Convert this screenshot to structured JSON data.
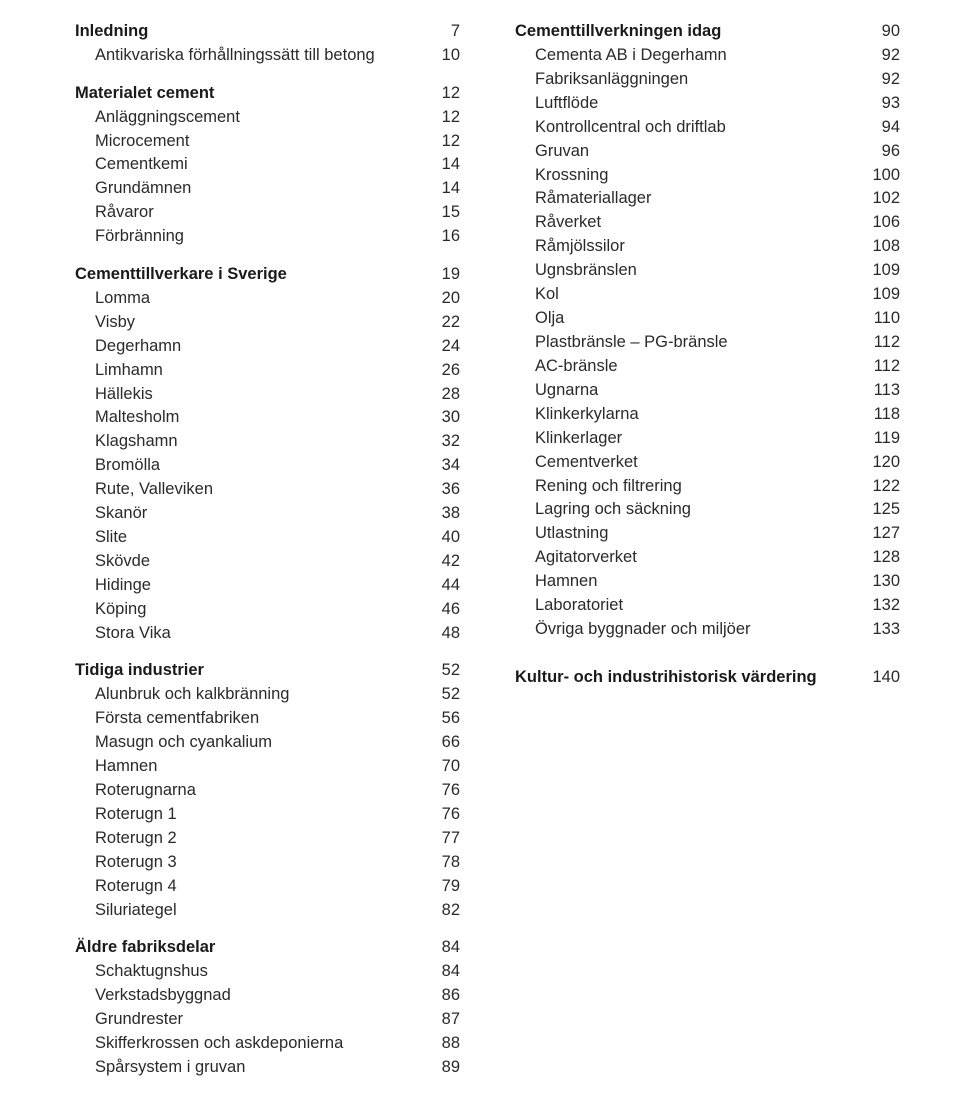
{
  "left": [
    {
      "type": "heading",
      "label": "Inledning",
      "page": "7"
    },
    {
      "type": "sub",
      "label": "Antikvariska förhållningssätt till betong",
      "page": "10"
    },
    {
      "type": "gap"
    },
    {
      "type": "heading",
      "label": "Materialet cement",
      "page": "12"
    },
    {
      "type": "sub",
      "label": "Anläggningscement",
      "page": "12"
    },
    {
      "type": "sub",
      "label": "Microcement",
      "page": "12"
    },
    {
      "type": "sub",
      "label": "Cementkemi",
      "page": "14"
    },
    {
      "type": "sub",
      "label": "Grundämnen",
      "page": "14"
    },
    {
      "type": "sub",
      "label": "Råvaror",
      "page": "15"
    },
    {
      "type": "sub",
      "label": "Förbränning",
      "page": "16"
    },
    {
      "type": "gap"
    },
    {
      "type": "heading",
      "label": "Cementtillverkare i Sverige",
      "page": "19"
    },
    {
      "type": "sub",
      "label": "Lomma",
      "page": "20"
    },
    {
      "type": "sub",
      "label": "Visby",
      "page": "22"
    },
    {
      "type": "sub",
      "label": "Degerhamn",
      "page": "24"
    },
    {
      "type": "sub",
      "label": "Limhamn",
      "page": "26"
    },
    {
      "type": "sub",
      "label": "Hällekis",
      "page": "28"
    },
    {
      "type": "sub",
      "label": "Maltesholm",
      "page": "30"
    },
    {
      "type": "sub",
      "label": "Klagshamn",
      "page": "32"
    },
    {
      "type": "sub",
      "label": "Bromölla",
      "page": "34"
    },
    {
      "type": "sub",
      "label": "Rute, Valleviken",
      "page": "36"
    },
    {
      "type": "sub",
      "label": "Skanör",
      "page": "38"
    },
    {
      "type": "sub",
      "label": "Slite",
      "page": "40"
    },
    {
      "type": "sub",
      "label": "Skövde",
      "page": "42"
    },
    {
      "type": "sub",
      "label": "Hidinge",
      "page": "44"
    },
    {
      "type": "sub",
      "label": "Köping",
      "page": "46"
    },
    {
      "type": "sub",
      "label": "Stora Vika",
      "page": "48"
    },
    {
      "type": "gap"
    },
    {
      "type": "heading",
      "label": "Tidiga industrier",
      "page": "52"
    },
    {
      "type": "sub",
      "label": "Alunbruk och kalkbränning",
      "page": "52"
    },
    {
      "type": "sub",
      "label": "Första cementfabriken",
      "page": "56"
    },
    {
      "type": "sub",
      "label": "Masugn och cyankalium",
      "page": "66"
    },
    {
      "type": "sub",
      "label": "Hamnen",
      "page": "70"
    },
    {
      "type": "sub",
      "label": "Roterugnarna",
      "page": "76"
    },
    {
      "type": "sub",
      "label": "Roterugn 1",
      "page": "76"
    },
    {
      "type": "sub",
      "label": "Roterugn 2",
      "page": "77"
    },
    {
      "type": "sub",
      "label": "Roterugn 3",
      "page": "78"
    },
    {
      "type": "sub",
      "label": "Roterugn 4",
      "page": "79"
    },
    {
      "type": "sub",
      "label": "Siluriategel",
      "page": "82"
    },
    {
      "type": "gap"
    },
    {
      "type": "heading",
      "label": "Äldre fabriksdelar",
      "page": "84"
    },
    {
      "type": "sub",
      "label": "Schaktugnshus",
      "page": "84"
    },
    {
      "type": "sub",
      "label": "Verkstadsbyggnad",
      "page": "86"
    },
    {
      "type": "sub",
      "label": "Grundrester",
      "page": "87"
    },
    {
      "type": "sub",
      "label": "Skifferkrossen och askdeponierna",
      "page": "88"
    },
    {
      "type": "sub",
      "label": "Spårsystem i gruvan",
      "page": "89"
    }
  ],
  "right": [
    {
      "type": "heading",
      "label": "Cementtillverkningen idag",
      "page": "90"
    },
    {
      "type": "sub",
      "label": "Cementa AB i Degerhamn",
      "page": "92"
    },
    {
      "type": "sub",
      "label": "Fabriksanläggningen",
      "page": "92"
    },
    {
      "type": "sub",
      "label": "Luftflöde",
      "page": "93"
    },
    {
      "type": "sub",
      "label": "Kontrollcentral och driftlab",
      "page": "94"
    },
    {
      "type": "sub",
      "label": "Gruvan",
      "page": "96"
    },
    {
      "type": "sub",
      "label": "Krossning",
      "page": "100"
    },
    {
      "type": "sub",
      "label": "Råmateriallager",
      "page": "102"
    },
    {
      "type": "sub",
      "label": "Råverket",
      "page": "106"
    },
    {
      "type": "sub",
      "label": "Råmjölssilor",
      "page": "108"
    },
    {
      "type": "sub",
      "label": "Ugnsbränslen",
      "page": "109"
    },
    {
      "type": "sub",
      "label": "Kol",
      "page": "109"
    },
    {
      "type": "sub",
      "label": "Olja",
      "page": "110"
    },
    {
      "type": "sub",
      "label": "Plastbränsle – PG-bränsle",
      "page": "112"
    },
    {
      "type": "sub",
      "label": "AC-bränsle",
      "page": "112"
    },
    {
      "type": "sub",
      "label": "Ugnarna",
      "page": "113"
    },
    {
      "type": "sub",
      "label": "Klinkerkylarna",
      "page": "118"
    },
    {
      "type": "sub",
      "label": "Klinkerlager",
      "page": "119"
    },
    {
      "type": "sub",
      "label": "Cementverket",
      "page": "120"
    },
    {
      "type": "sub",
      "label": "Rening och filtrering",
      "page": "122"
    },
    {
      "type": "sub",
      "label": "Lagring och säckning",
      "page": "125"
    },
    {
      "type": "sub",
      "label": "Utlastning",
      "page": "127"
    },
    {
      "type": "sub",
      "label": "Agitatorverket",
      "page": "128"
    },
    {
      "type": "sub",
      "label": "Hamnen",
      "page": "130"
    },
    {
      "type": "sub",
      "label": "Laboratoriet",
      "page": "132"
    },
    {
      "type": "sub",
      "label": "Övriga byggnader och miljöer",
      "page": "133"
    },
    {
      "type": "gap"
    },
    {
      "type": "heading",
      "label": "Kultur- och industrihistorisk värdering",
      "page": "140"
    }
  ]
}
